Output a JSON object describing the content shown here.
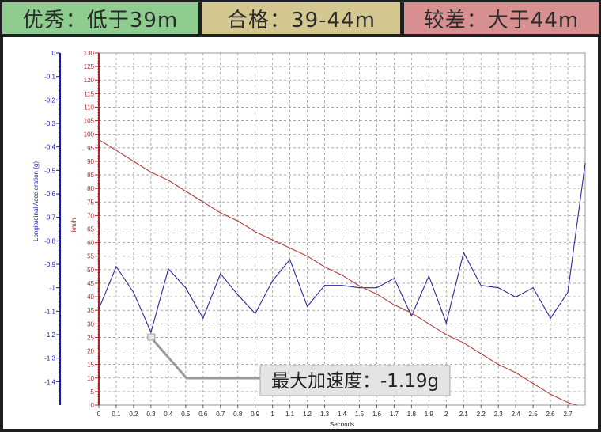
{
  "banners": [
    {
      "text": "优秀：低于39m",
      "color": "#8fcc8f"
    },
    {
      "text": "合格：39-44m",
      "color": "#d4c890"
    },
    {
      "text": "较差：大于44m",
      "color": "#d88f8f"
    }
  ],
  "chart_data": {
    "type": "line",
    "xlabel": "Seconds",
    "x_ticks": [
      "0",
      "0.1",
      "0.2",
      "0.3",
      "0.4",
      "0.5",
      "0.6",
      "0.7",
      "0.8",
      "0.9",
      "1",
      "1.1",
      "1.2",
      "1.3",
      "1.4",
      "1.5",
      "1.6",
      "1.7",
      "1.8",
      "1.9",
      "2",
      "2.1",
      "2.2",
      "2.3",
      "2.4",
      "2.5",
      "2.6",
      "2.7"
    ],
    "xlim": [
      0,
      2.8
    ],
    "left_axis": {
      "label": "Longitudinal Acceleration (g)",
      "ylim": [
        -1.5,
        0
      ],
      "ticks": [
        "0",
        "-0.1",
        "-0.2",
        "-0.3",
        "-0.4",
        "-0.5",
        "-0.6",
        "-0.7",
        "-0.8",
        "-0.9",
        "-1",
        "-1.1",
        "-1.2",
        "-1.3",
        "-1.4"
      ],
      "tick_values": [
        0,
        -0.1,
        -0.2,
        -0.3,
        -0.4,
        -0.5,
        -0.6,
        -0.7,
        -0.8,
        -0.9,
        -1,
        -1.1,
        -1.2,
        -1.3,
        -1.4
      ],
      "color": "#1a1aaa"
    },
    "right_axis": {
      "label": "km/h",
      "ylim": [
        0,
        130
      ],
      "ticks": [
        "0",
        "5",
        "10",
        "15",
        "20",
        "25",
        "30",
        "35",
        "40",
        "45",
        "50",
        "55",
        "60",
        "65",
        "70",
        "75",
        "80",
        "85",
        "90",
        "95",
        "100",
        "105",
        "110",
        "115",
        "120",
        "125",
        "130"
      ],
      "tick_values": [
        0,
        5,
        10,
        15,
        20,
        25,
        30,
        35,
        40,
        45,
        50,
        55,
        60,
        65,
        70,
        75,
        80,
        85,
        90,
        95,
        100,
        105,
        110,
        115,
        120,
        125,
        130
      ],
      "color": "#b52020"
    },
    "series": [
      {
        "axis": "left",
        "color": "#2a2a9a",
        "x": [
          0,
          0.1,
          0.2,
          0.3,
          0.4,
          0.5,
          0.6,
          0.7,
          0.8,
          0.9,
          1.0,
          1.1,
          1.2,
          1.3,
          1.4,
          1.5,
          1.6,
          1.7,
          1.8,
          1.9,
          2.0,
          2.1,
          2.2,
          2.3,
          2.4,
          2.5,
          2.6,
          2.7,
          2.8
        ],
        "y": [
          -1.09,
          -0.91,
          -1.02,
          -1.19,
          -0.92,
          -1.0,
          -1.13,
          -0.94,
          -1.03,
          -1.11,
          -0.97,
          -0.88,
          -1.08,
          -0.99,
          -0.99,
          -1.0,
          -1.0,
          -0.96,
          -1.12,
          -0.95,
          -1.15,
          -0.85,
          -0.99,
          -1.0,
          -1.04,
          -1.0,
          -1.13,
          -1.02,
          -0.47
        ]
      },
      {
        "axis": "right",
        "color": "#b53a3a",
        "x": [
          0,
          0.1,
          0.2,
          0.3,
          0.4,
          0.5,
          0.6,
          0.7,
          0.8,
          0.9,
          1.0,
          1.1,
          1.2,
          1.3,
          1.4,
          1.5,
          1.6,
          1.7,
          1.8,
          1.9,
          2.0,
          2.1,
          2.2,
          2.3,
          2.4,
          2.5,
          2.6,
          2.7,
          2.75
        ],
        "y": [
          98,
          94,
          90,
          86,
          83,
          79,
          75,
          71,
          68,
          64,
          61,
          58,
          55,
          51,
          48,
          44,
          41,
          37,
          34,
          30,
          26,
          23,
          19,
          15,
          12,
          8,
          4,
          1,
          0
        ]
      }
    ],
    "annotation": {
      "text": "最大加速度：-1.19g",
      "x": 0.3,
      "y": -1.19
    },
    "grid": true
  }
}
